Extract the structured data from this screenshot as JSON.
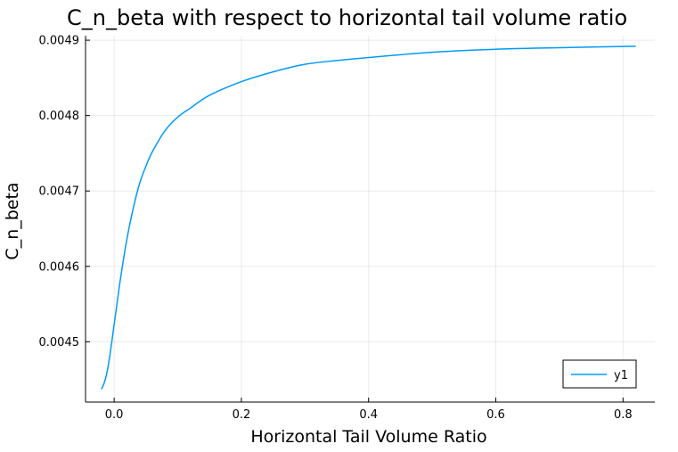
{
  "chart_data": {
    "type": "line",
    "title": "C_n_beta with respect to horizontal tail volume ratio",
    "xlabel": "Horizontal Tail Volume Ratio",
    "ylabel": "C_n_beta",
    "xlim": [
      -0.045,
      0.85
    ],
    "ylim": [
      0.00442,
      0.004906
    ],
    "xticks": [
      0.0,
      0.2,
      0.4,
      0.6,
      0.8
    ],
    "xtick_labels": [
      "0.0",
      "0.2",
      "0.4",
      "0.6",
      "0.8"
    ],
    "yticks": [
      0.0045,
      0.0046,
      0.0047,
      0.0048,
      0.0049
    ],
    "ytick_labels": [
      "0.0045",
      "0.0046",
      "0.0047",
      "0.0048",
      "0.0049"
    ],
    "grid": true,
    "legend_position": "bottom-right",
    "series": [
      {
        "name": "y1",
        "color": "#009AFA",
        "x": [
          -0.02,
          -0.015,
          -0.01,
          -0.005,
          0.0,
          0.01,
          0.02,
          0.03,
          0.04,
          0.05,
          0.06,
          0.08,
          0.1,
          0.12,
          0.15,
          0.2,
          0.25,
          0.3,
          0.35,
          0.4,
          0.5,
          0.6,
          0.7,
          0.82
        ],
        "y": [
          0.004437,
          0.004447,
          0.004465,
          0.004492,
          0.004523,
          0.004584,
          0.004636,
          0.004677,
          0.00471,
          0.004733,
          0.004752,
          0.00478,
          0.004798,
          0.00481,
          0.004827,
          0.004845,
          0.004858,
          0.004868,
          0.004873,
          0.004877,
          0.004884,
          0.004888,
          0.00489,
          0.004892
        ]
      }
    ]
  }
}
